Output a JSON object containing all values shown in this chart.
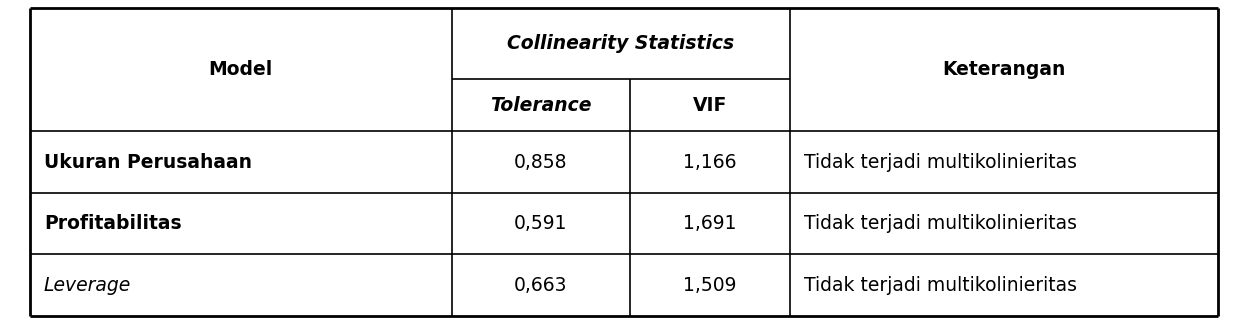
{
  "col_model_header": "Model",
  "col_collinearity_header": "Collinearity Statistics",
  "col_tolerance_header": "Tolerance",
  "col_vif_header": "VIF",
  "col_keterangan_header": "Keterangan",
  "rows": [
    {
      "model": "Ukuran Perusahaan",
      "model_bold": true,
      "model_italic": false,
      "tolerance": "0,858",
      "vif": "1,166",
      "keterangan": "Tidak terjadi multikolinieritas"
    },
    {
      "model": "Profitabilitas",
      "model_bold": true,
      "model_italic": false,
      "tolerance": "0,591",
      "vif": "1,691",
      "keterangan": "Tidak terjadi multikolinieritas"
    },
    {
      "model": "Leverage",
      "model_bold": false,
      "model_italic": true,
      "tolerance": "0,663",
      "vif": "1,509",
      "keterangan": "Tidak terjadi multikolinieritas"
    }
  ],
  "background_color": "#ffffff",
  "line_color": "#000000",
  "header_fontsize": 13.5,
  "cell_fontsize": 13.5,
  "fig_width": 12.48,
  "fig_height": 3.24,
  "dpi": 100
}
